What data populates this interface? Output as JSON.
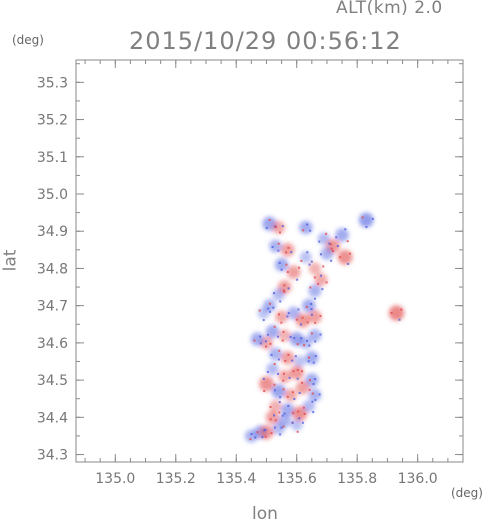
{
  "header": {
    "altitude_label": "ALT(km) 2.0",
    "timestamp": "2015/10/29 00:56:12"
  },
  "chart_data": {
    "type": "heatmap",
    "title": "2015/10/29 00:56:12",
    "subtitle": "ALT(km) 2.0",
    "xlabel": "lon",
    "ylabel": "lat",
    "x_unit": "(deg)",
    "y_unit": "(deg)",
    "xlim": [
      134.87,
      136.15
    ],
    "ylim": [
      34.28,
      35.36
    ],
    "x_ticks": [
      {
        "value": 135.0,
        "label": "135.0"
      },
      {
        "value": 135.2,
        "label": "135.2"
      },
      {
        "value": 135.4,
        "label": "135.4"
      },
      {
        "value": 135.6,
        "label": "135.6"
      },
      {
        "value": 135.8,
        "label": "135.8"
      },
      {
        "value": 136.0,
        "label": "136.0"
      }
    ],
    "y_ticks": [
      {
        "value": 34.3,
        "label": "34.3"
      },
      {
        "value": 34.4,
        "label": "34.4"
      },
      {
        "value": 34.5,
        "label": "34.5"
      },
      {
        "value": 34.6,
        "label": "34.6"
      },
      {
        "value": 34.7,
        "label": "34.7"
      },
      {
        "value": 34.8,
        "label": "34.8"
      },
      {
        "value": 34.9,
        "label": "34.9"
      },
      {
        "value": 35.0,
        "label": "35.0"
      },
      {
        "value": 35.1,
        "label": "35.1"
      },
      {
        "value": 35.2,
        "label": "35.2"
      },
      {
        "value": 35.3,
        "label": "35.3"
      }
    ],
    "colors": {
      "negative": "#4f5fe0",
      "positive": "#e24a4a",
      "axis": "#8a8a8a"
    },
    "points": [
      {
        "lon": 135.51,
        "lat": 34.92,
        "v": -0.7
      },
      {
        "lon": 135.54,
        "lat": 34.91,
        "v": 0.5
      },
      {
        "lon": 135.53,
        "lat": 34.86,
        "v": -0.5
      },
      {
        "lon": 135.57,
        "lat": 34.85,
        "v": 0.6
      },
      {
        "lon": 135.63,
        "lat": 34.91,
        "v": -0.6
      },
      {
        "lon": 135.69,
        "lat": 34.88,
        "v": -0.4
      },
      {
        "lon": 135.72,
        "lat": 34.86,
        "v": 0.7
      },
      {
        "lon": 135.75,
        "lat": 34.89,
        "v": -0.6
      },
      {
        "lon": 135.76,
        "lat": 34.83,
        "v": 0.8
      },
      {
        "lon": 135.7,
        "lat": 34.84,
        "v": -0.5
      },
      {
        "lon": 135.66,
        "lat": 34.8,
        "v": 0.4
      },
      {
        "lon": 135.63,
        "lat": 34.83,
        "v": -0.3
      },
      {
        "lon": 135.59,
        "lat": 34.79,
        "v": 0.6
      },
      {
        "lon": 135.55,
        "lat": 34.81,
        "v": -0.6
      },
      {
        "lon": 135.68,
        "lat": 34.77,
        "v": 0.5
      },
      {
        "lon": 135.66,
        "lat": 34.74,
        "v": -0.5
      },
      {
        "lon": 135.83,
        "lat": 34.93,
        "v": -0.8
      },
      {
        "lon": 135.93,
        "lat": 34.68,
        "v": 0.9
      },
      {
        "lon": 135.56,
        "lat": 34.75,
        "v": 0.6
      },
      {
        "lon": 135.54,
        "lat": 34.73,
        "v": -0.4
      },
      {
        "lon": 135.51,
        "lat": 34.7,
        "v": -0.5
      },
      {
        "lon": 135.49,
        "lat": 34.68,
        "v": -0.3
      },
      {
        "lon": 135.55,
        "lat": 34.67,
        "v": 0.5
      },
      {
        "lon": 135.59,
        "lat": 34.68,
        "v": -0.5
      },
      {
        "lon": 135.62,
        "lat": 34.66,
        "v": 0.7
      },
      {
        "lon": 135.64,
        "lat": 34.7,
        "v": -0.6
      },
      {
        "lon": 135.66,
        "lat": 34.67,
        "v": 0.6
      },
      {
        "lon": 135.52,
        "lat": 34.63,
        "v": -0.6
      },
      {
        "lon": 135.56,
        "lat": 34.62,
        "v": 0.4
      },
      {
        "lon": 135.6,
        "lat": 34.61,
        "v": -0.7
      },
      {
        "lon": 135.63,
        "lat": 34.6,
        "v": -0.4
      },
      {
        "lon": 135.66,
        "lat": 34.62,
        "v": -0.5
      },
      {
        "lon": 135.5,
        "lat": 34.6,
        "v": 0.5
      },
      {
        "lon": 135.47,
        "lat": 34.61,
        "v": -0.6
      },
      {
        "lon": 135.53,
        "lat": 34.57,
        "v": -0.5
      },
      {
        "lon": 135.57,
        "lat": 34.56,
        "v": 0.6
      },
      {
        "lon": 135.61,
        "lat": 34.55,
        "v": -0.3
      },
      {
        "lon": 135.65,
        "lat": 34.56,
        "v": -0.6
      },
      {
        "lon": 135.52,
        "lat": 34.53,
        "v": -0.4
      },
      {
        "lon": 135.56,
        "lat": 34.51,
        "v": 0.5
      },
      {
        "lon": 135.6,
        "lat": 34.52,
        "v": 0.7
      },
      {
        "lon": 135.65,
        "lat": 34.5,
        "v": -0.6
      },
      {
        "lon": 135.5,
        "lat": 34.49,
        "v": 0.8
      },
      {
        "lon": 135.54,
        "lat": 34.47,
        "v": -0.7
      },
      {
        "lon": 135.58,
        "lat": 34.46,
        "v": 0.5
      },
      {
        "lon": 135.62,
        "lat": 34.48,
        "v": 0.6
      },
      {
        "lon": 135.66,
        "lat": 34.46,
        "v": -0.5
      },
      {
        "lon": 135.53,
        "lat": 34.43,
        "v": 0.4
      },
      {
        "lon": 135.57,
        "lat": 34.42,
        "v": -0.6
      },
      {
        "lon": 135.61,
        "lat": 34.41,
        "v": 0.8
      },
      {
        "lon": 135.64,
        "lat": 34.43,
        "v": -0.4
      },
      {
        "lon": 135.52,
        "lat": 34.4,
        "v": 0.6
      },
      {
        "lon": 135.56,
        "lat": 34.39,
        "v": -0.5
      },
      {
        "lon": 135.6,
        "lat": 34.38,
        "v": -0.3
      },
      {
        "lon": 135.48,
        "lat": 34.36,
        "v": -0.6
      },
      {
        "lon": 135.45,
        "lat": 34.35,
        "v": -0.5
      },
      {
        "lon": 135.5,
        "lat": 34.36,
        "v": 0.7
      },
      {
        "lon": 135.54,
        "lat": 34.37,
        "v": -0.4
      }
    ]
  }
}
